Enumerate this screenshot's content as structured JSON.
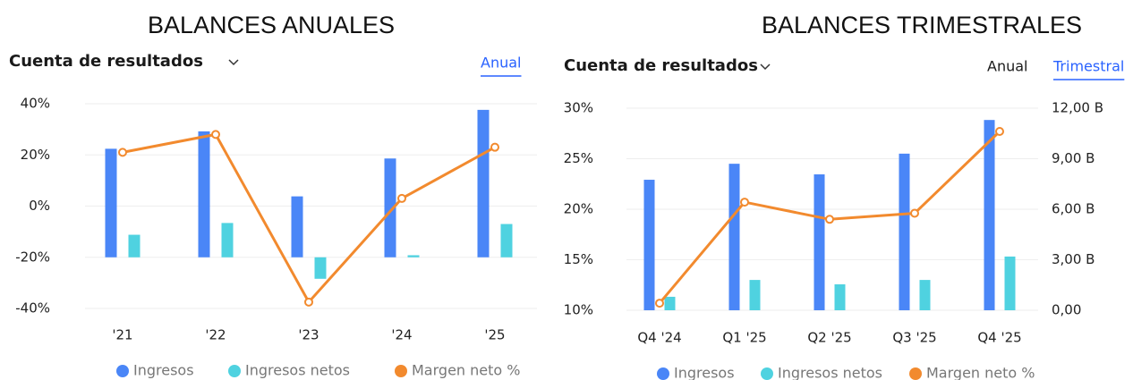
{
  "headings": [
    "BALANCES ANUALES",
    "BALANCES TRIMESTRALES"
  ],
  "chart_data": [
    {
      "type": "combo",
      "title": "Cuenta de resultados",
      "tabs": [
        "Anual"
      ],
      "active_tab": 0,
      "categories": [
        "'21",
        "'22",
        "'23",
        "'24",
        "'25"
      ],
      "series": [
        {
          "name": "Ingresos",
          "type": "bar",
          "axis": "y2",
          "color": "#4a86f7",
          "values": [
            2.12,
            2.46,
            1.19,
            1.93,
            2.88
          ]
        },
        {
          "name": "Ingresos netos",
          "type": "bar",
          "axis": "y2",
          "color": "#4fd2e0",
          "values": [
            0.44,
            0.67,
            -0.42,
            0.04,
            0.65
          ]
        },
        {
          "name": "Margen neto %",
          "type": "line",
          "color": "#f28a2e",
          "values": [
            21,
            28,
            -37.5,
            3,
            23
          ]
        }
      ],
      "ylim": [
        -40,
        40
      ],
      "yticks": [
        {
          "value": 40,
          "label": "40%"
        },
        {
          "value": 20,
          "label": "20%"
        },
        {
          "value": 0,
          "label": "0%"
        },
        {
          "value": -20,
          "label": "-20%"
        },
        {
          "value": -40,
          "label": "-40%"
        }
      ],
      "y2lim": [
        -1,
        3
      ],
      "grid": true
    },
    {
      "type": "combo",
      "title": "Cuenta de resultados",
      "tabs": [
        "Anual",
        "Trimestral"
      ],
      "active_tab": 1,
      "categories": [
        "Q4 '24",
        "Q1 '25",
        "Q2 '25",
        "Q3 '25",
        "Q4 '25"
      ],
      "series": [
        {
          "name": "Ingresos",
          "type": "bar",
          "axis": "y2",
          "color": "#4a86f7",
          "values": [
            7.75,
            8.7,
            8.07,
            9.3,
            11.3
          ]
        },
        {
          "name": "Ingresos netos",
          "type": "bar",
          "axis": "y2",
          "color": "#4fd2e0",
          "values": [
            0.8,
            1.8,
            1.54,
            1.8,
            3.19
          ]
        },
        {
          "name": "Margen neto %",
          "type": "line",
          "color": "#f28a2e",
          "values": [
            10.7,
            20.7,
            19.0,
            19.6,
            27.7
          ]
        }
      ],
      "ylim": [
        10,
        30
      ],
      "yticks": [
        {
          "value": 30,
          "label": "30%"
        },
        {
          "value": 25,
          "label": "25%"
        },
        {
          "value": 20,
          "label": "20%"
        },
        {
          "value": 15,
          "label": "15%"
        },
        {
          "value": 10,
          "label": "10%"
        }
      ],
      "y2lim": [
        0,
        12
      ],
      "y2ticks": [
        {
          "value": 12,
          "label": "12,00 B"
        },
        {
          "value": 9,
          "label": "9,00 B"
        },
        {
          "value": 6,
          "label": "6,00 B"
        },
        {
          "value": 3,
          "label": "3,00 B"
        },
        {
          "value": 0,
          "label": "0,00"
        }
      ],
      "grid": true
    }
  ]
}
